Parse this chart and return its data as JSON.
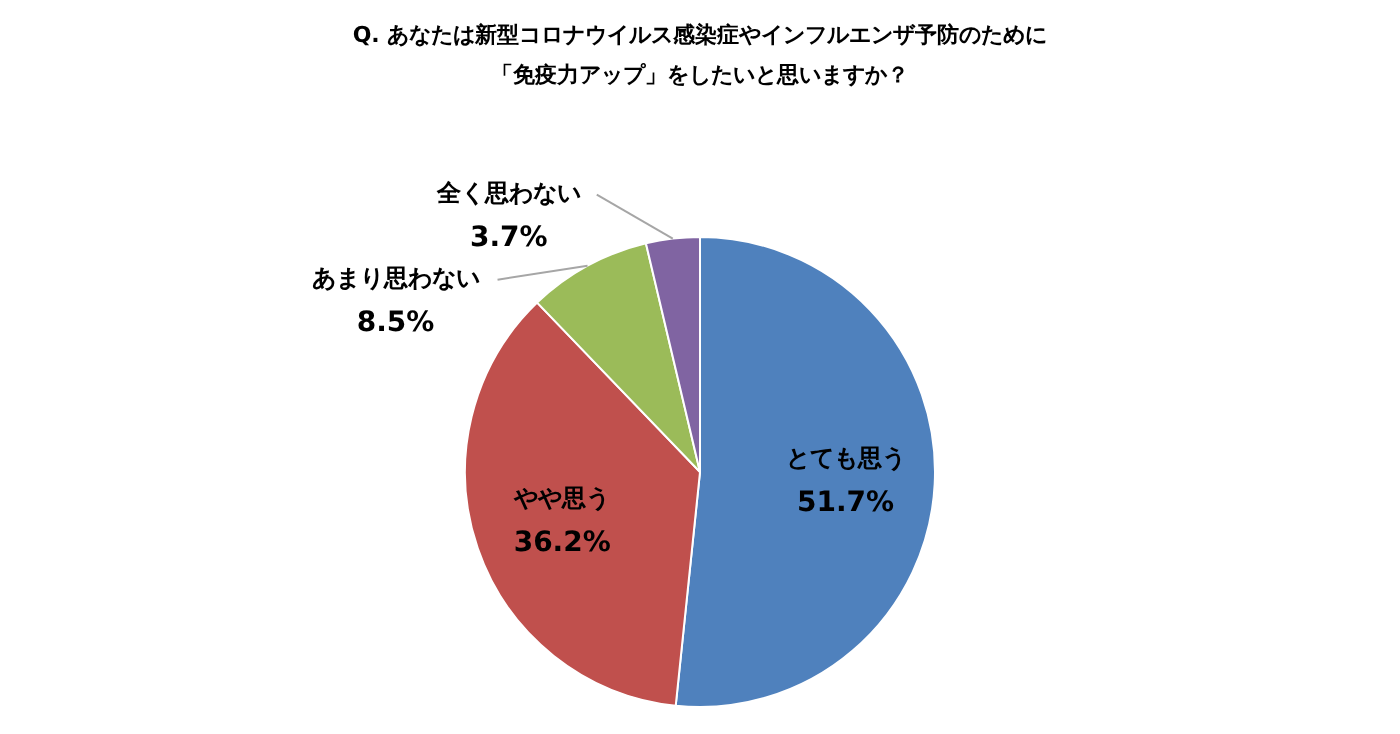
{
  "chart_data": {
    "type": "pie",
    "title": "Q. あなたは新型コロナウイルス感染症やインフルエンザ予防のために「免疫力アップ」をしたいと思いますか？",
    "categories": [
      "とても思う",
      "やや思う",
      "あまり思わない",
      "全く思わない"
    ],
    "values": [
      51.7,
      36.2,
      8.5,
      3.7
    ],
    "value_labels": [
      "51.7%",
      "36.2%",
      "8.5%",
      "3.7%"
    ],
    "colors": [
      "#4f81bd",
      "#c0504d",
      "#9bbb59",
      "#8064a2"
    ],
    "legend": false
  }
}
